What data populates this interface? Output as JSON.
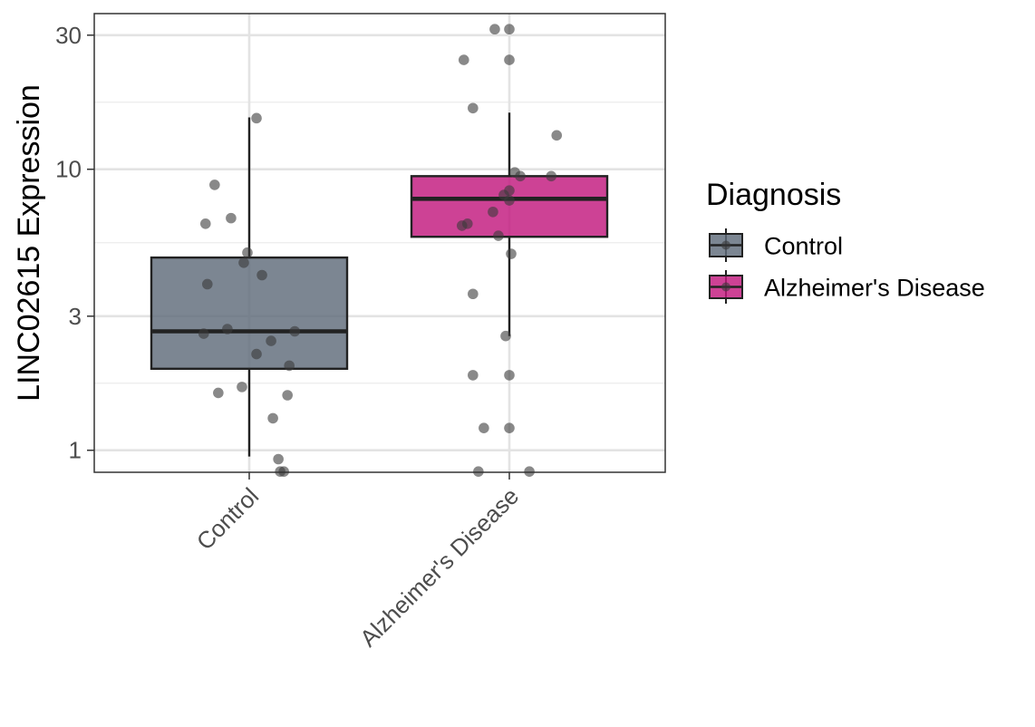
{
  "chart_data": {
    "type": "boxplot",
    "title": "",
    "xlabel": "",
    "ylabel": "LINC02615 Expression",
    "y_scale": "log10",
    "ylim": [
      0.835,
      35.8
    ],
    "y_ticks": [
      1,
      3,
      10,
      30
    ],
    "y_tick_labels": [
      "1",
      "3",
      "10",
      "30"
    ],
    "categories": [
      "Control",
      "Alzheimer's Disease"
    ],
    "grid": true,
    "legend": {
      "title": "Diagnosis",
      "placement": "right",
      "entries": [
        "Control",
        "Alzheimer's Disease"
      ]
    },
    "colors": {
      "Control": "#5f6b7a",
      "Alzheimer's Disease": "#c2187e",
      "points": "#3a3a3a",
      "box_outline": "#222222"
    },
    "boxes": [
      {
        "category": "Control",
        "whisker_low": 0.95,
        "q1": 1.95,
        "median": 2.65,
        "q3": 4.85,
        "whisker_high": 15.3
      },
      {
        "category": "Alzheimer's Disease",
        "whisker_low": 2.55,
        "q1": 5.75,
        "median": 7.85,
        "q3": 9.45,
        "whisker_high": 15.9
      }
    ],
    "points": [
      {
        "category": "Control",
        "jitter": 0.04,
        "y": 15.2
      },
      {
        "category": "Control",
        "jitter": -0.19,
        "y": 8.8
      },
      {
        "category": "Control",
        "jitter": -0.24,
        "y": 6.4
      },
      {
        "category": "Control",
        "jitter": -0.1,
        "y": 6.7
      },
      {
        "category": "Control",
        "jitter": -0.01,
        "y": 5.05
      },
      {
        "category": "Control",
        "jitter": -0.03,
        "y": 4.65
      },
      {
        "category": "Control",
        "jitter": 0.07,
        "y": 4.2
      },
      {
        "category": "Control",
        "jitter": -0.23,
        "y": 3.9
      },
      {
        "category": "Control",
        "jitter": -0.12,
        "y": 2.7
      },
      {
        "category": "Control",
        "jitter": -0.25,
        "y": 2.6
      },
      {
        "category": "Control",
        "jitter": 0.25,
        "y": 2.65
      },
      {
        "category": "Control",
        "jitter": 0.12,
        "y": 2.45
      },
      {
        "category": "Control",
        "jitter": 0.04,
        "y": 2.2
      },
      {
        "category": "Control",
        "jitter": 0.22,
        "y": 2.0
      },
      {
        "category": "Control",
        "jitter": -0.04,
        "y": 1.68
      },
      {
        "category": "Control",
        "jitter": -0.17,
        "y": 1.6
      },
      {
        "category": "Control",
        "jitter": 0.21,
        "y": 1.57
      },
      {
        "category": "Control",
        "jitter": 0.13,
        "y": 1.3
      },
      {
        "category": "Control",
        "jitter": 0.16,
        "y": 0.93
      },
      {
        "category": "Control",
        "jitter": 0.17,
        "y": 0.84
      },
      {
        "category": "Control",
        "jitter": 0.19,
        "y": 0.84
      },
      {
        "category": "Alzheimer's Disease",
        "jitter": -0.08,
        "y": 31.5
      },
      {
        "category": "Alzheimer's Disease",
        "jitter": 0.0,
        "y": 31.5
      },
      {
        "category": "Alzheimer's Disease",
        "jitter": -0.25,
        "y": 24.5
      },
      {
        "category": "Alzheimer's Disease",
        "jitter": 0.0,
        "y": 24.5
      },
      {
        "category": "Alzheimer's Disease",
        "jitter": -0.2,
        "y": 16.5
      },
      {
        "category": "Alzheimer's Disease",
        "jitter": 0.26,
        "y": 13.2
      },
      {
        "category": "Alzheimer's Disease",
        "jitter": 0.03,
        "y": 9.75
      },
      {
        "category": "Alzheimer's Disease",
        "jitter": 0.06,
        "y": 9.45
      },
      {
        "category": "Alzheimer's Disease",
        "jitter": 0.23,
        "y": 9.45
      },
      {
        "category": "Alzheimer's Disease",
        "jitter": 0.0,
        "y": 8.4
      },
      {
        "category": "Alzheimer's Disease",
        "jitter": -0.03,
        "y": 8.1
      },
      {
        "category": "Alzheimer's Disease",
        "jitter": 0.0,
        "y": 7.75
      },
      {
        "category": "Alzheimer's Disease",
        "jitter": -0.09,
        "y": 7.05
      },
      {
        "category": "Alzheimer's Disease",
        "jitter": -0.26,
        "y": 6.3
      },
      {
        "category": "Alzheimer's Disease",
        "jitter": -0.23,
        "y": 6.4
      },
      {
        "category": "Alzheimer's Disease",
        "jitter": -0.06,
        "y": 5.8
      },
      {
        "category": "Alzheimer's Disease",
        "jitter": 0.01,
        "y": 5.0
      },
      {
        "category": "Alzheimer's Disease",
        "jitter": -0.2,
        "y": 3.6
      },
      {
        "category": "Alzheimer's Disease",
        "jitter": -0.02,
        "y": 2.55
      },
      {
        "category": "Alzheimer's Disease",
        "jitter": -0.2,
        "y": 1.85
      },
      {
        "category": "Alzheimer's Disease",
        "jitter": 0.0,
        "y": 1.85
      },
      {
        "category": "Alzheimer's Disease",
        "jitter": -0.14,
        "y": 1.2
      },
      {
        "category": "Alzheimer's Disease",
        "jitter": 0.0,
        "y": 1.2
      },
      {
        "category": "Alzheimer's Disease",
        "jitter": -0.17,
        "y": 0.84
      },
      {
        "category": "Alzheimer's Disease",
        "jitter": 0.11,
        "y": 0.84
      }
    ]
  }
}
